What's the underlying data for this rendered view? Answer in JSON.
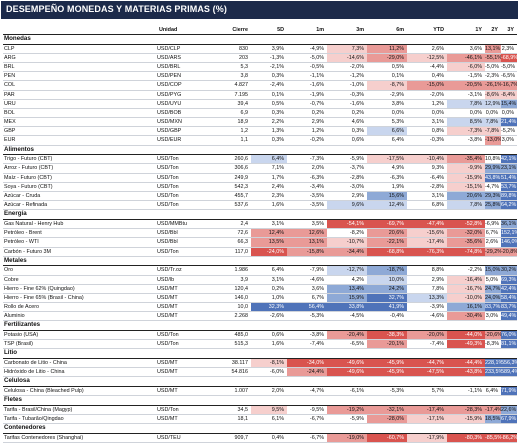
{
  "title": "DESEMPEÑO MONEDAS Y MATERIAS PRIMAS (%)",
  "headers": [
    "Unidad",
    "Cierre",
    "5D",
    "1m",
    "3m",
    "6m",
    "YTD",
    "1Y",
    "2Y",
    "3Y"
  ],
  "colors": {
    "banner": "#1c2a4a",
    "blue_strong": "#4f73b9",
    "blue_mid": "#8ea9d6",
    "blue_light": "#c9d6ee",
    "red_strong": "#d9544f",
    "red_mid": "#e99a97",
    "red_light": "#f6cfcd"
  },
  "sections": [
    {
      "name": "Monedas",
      "rows": [
        {
          "name": "CLP",
          "unit": "USD/CLP",
          "vals": [
            "830",
            "3,9%",
            "-4,9%",
            "7,3%",
            "11,2%",
            "2,6%",
            "3,6%",
            "13,1%",
            "2,3%"
          ],
          "tones": [
            null,
            null,
            null,
            "rl",
            "rm",
            null,
            null,
            "rm",
            null
          ]
        },
        {
          "name": "ARG",
          "unit": "USD/ARS",
          "vals": [
            "203",
            "-1,3%",
            "-5,0%",
            "-14,6%",
            "-29,0%",
            "-12,5%",
            "-46,1%",
            "-55,1%",
            "-68,9%"
          ],
          "tones": [
            null,
            null,
            null,
            "rl",
            "rm",
            "rl",
            "rm",
            "rm",
            "rs"
          ]
        },
        {
          "name": "BRL",
          "unit": "USD/BRL",
          "vals": [
            "5,3",
            "-2,1%",
            "-0,5%",
            "-2,0%",
            "0,5%",
            "-4,4%",
            "-6,0%",
            "-5,0%",
            "-5,0%"
          ],
          "tones": [
            null,
            null,
            null,
            null,
            null,
            null,
            "rl",
            null,
            null
          ]
        },
        {
          "name": "PEN",
          "unit": "USD/PEN",
          "vals": [
            "3,8",
            "0,3%",
            "-1,1%",
            "-1,2%",
            "0,1%",
            "0,4%",
            "-1,5%",
            "-2,3%",
            "-6,5%"
          ],
          "tones": [
            null,
            null,
            null,
            null,
            null,
            null,
            null,
            null,
            null
          ]
        },
        {
          "name": "COL",
          "unit": "USD/COP",
          "vals": [
            "4.827",
            "-2,4%",
            "-1,6%",
            "-1,0%",
            "-8,7%",
            "-15,0%",
            "-20,5%",
            "-26,1%",
            "-16,7%"
          ],
          "tones": [
            null,
            null,
            null,
            null,
            "rl",
            "rm",
            "rm",
            "rm",
            "rm"
          ]
        },
        {
          "name": "PAR",
          "unit": "USD/PYG",
          "vals": [
            "7.195",
            "0,1%",
            "-1,9%",
            "-0,3%",
            "-2,9%",
            "-2,0%",
            "-3,1%",
            "-8,6%",
            "-8,4%"
          ],
          "tones": [
            null,
            null,
            null,
            null,
            null,
            null,
            null,
            "rl",
            "rl"
          ]
        },
        {
          "name": "URU",
          "unit": "USD/UYU",
          "vals": [
            "39,4",
            "0,5%",
            "-0,7%",
            "-1,6%",
            "3,8%",
            "1,2%",
            "7,8%",
            "12,9%",
            "15,4%"
          ],
          "tones": [
            null,
            null,
            null,
            null,
            null,
            null,
            "bl",
            "bl",
            "bm"
          ]
        },
        {
          "name": "BOL",
          "unit": "USD/BOB",
          "vals": [
            "6,9",
            "0,3%",
            "0,2%",
            "0,2%",
            "0,0%",
            "0,0%",
            "0,0%",
            "0,0%",
            "0,0%"
          ],
          "tones": [
            null,
            null,
            null,
            null,
            null,
            null,
            null,
            null,
            null
          ]
        },
        {
          "name": "MEX",
          "unit": "USD/MXN",
          "vals": [
            "18,9",
            "2,2%",
            "2,9%",
            "4,6%",
            "5,3%",
            "3,1%",
            "8,5%",
            "7,8%",
            "21,4%"
          ],
          "tones": [
            null,
            null,
            null,
            null,
            null,
            null,
            "bl",
            "bl",
            "bs"
          ]
        },
        {
          "name": "GBP",
          "unit": "USD/GBP",
          "vals": [
            "1,2",
            "1,3%",
            "1,2%",
            "0,3%",
            "6,6%",
            "0,8%",
            "-7,3%",
            "-7,8%",
            "-5,2%"
          ],
          "tones": [
            null,
            null,
            null,
            null,
            "bl",
            null,
            "rl",
            "rl",
            null
          ]
        },
        {
          "name": "EUR",
          "unit": "USD/EUR",
          "vals": [
            "1,1",
            "0,3%",
            "-0,2%",
            "0,6%",
            "6,4%",
            "-0,3%",
            "-3,8%",
            "-13,0%",
            "3,0%"
          ],
          "tones": [
            null,
            null,
            null,
            null,
            null,
            null,
            null,
            "rm",
            null
          ]
        }
      ]
    },
    {
      "name": "Alimentos",
      "rows": [
        {
          "name": "Trigo - Futuro (CBT)",
          "unit": "USD/Ton",
          "vals": [
            "260,6",
            "6,4%",
            "-7,3%",
            "-5,9%",
            "-17,5%",
            "-10,4%",
            "-35,4%",
            "10,8%",
            "42,1%"
          ],
          "tones": [
            null,
            "bl",
            null,
            null,
            "rl",
            "rl",
            "rm",
            null,
            "bs"
          ]
        },
        {
          "name": "Arroz - Futuro (CBT)",
          "unit": "USD/Ton",
          "vals": [
            "306,6",
            "7,1%",
            "2,0%",
            "-3,7%",
            "4,9%",
            "9,3%",
            "-9,9%",
            "29,9%",
            "23,1%"
          ],
          "tones": [
            null,
            null,
            null,
            null,
            null,
            null,
            "rl",
            "bm",
            "bm"
          ]
        },
        {
          "name": "Maíz - Futuro (CBT)",
          "unit": "USD/Ton",
          "vals": [
            "249,9",
            "1,7%",
            "-6,3%",
            "-2,8%",
            "-6,3%",
            "-6,4%",
            "-15,9%",
            "43,8%",
            "51,4%"
          ],
          "tones": [
            null,
            null,
            null,
            null,
            null,
            null,
            "rl",
            "bs",
            "bs"
          ]
        },
        {
          "name": "Soya - Futuro (CBT)",
          "unit": "USD/Ton",
          "vals": [
            "542,3",
            "2,4%",
            "-3,4%",
            "-3,0%",
            "1,9%",
            "-2,8%",
            "-15,1%",
            "-4,7%",
            "53,7%"
          ],
          "tones": [
            null,
            null,
            null,
            null,
            null,
            null,
            "rl",
            null,
            "bs"
          ]
        },
        {
          "name": "Azúcar - Cruda",
          "unit": "USD/Ton",
          "vals": [
            "455,7",
            "2,3%",
            "-3,5%",
            "2,9%",
            "15,6%",
            "3,1%",
            "20,6%",
            "29,3%",
            "89,8%"
          ],
          "tones": [
            null,
            null,
            null,
            null,
            "bm",
            null,
            "bm",
            "bm",
            "bs"
          ]
        },
        {
          "name": "Azúcar - Refinada",
          "unit": "USD/Ton",
          "vals": [
            "537,6",
            "1,6%",
            "-3,5%",
            "9,6%",
            "12,4%",
            "6,8%",
            "7,8%",
            "25,8%",
            "64,2%"
          ],
          "tones": [
            null,
            null,
            null,
            "bl",
            "bl",
            null,
            "bl",
            "bm",
            "bs"
          ]
        }
      ]
    },
    {
      "name": "Energía",
      "rows": [
        {
          "name": "Gas Natural - Henry Hub",
          "unit": "USD/MMBtu",
          "vals": [
            "2,4",
            "3,1%",
            "3,5%",
            "-54,1%",
            "-69,7%",
            "-47,4%",
            "-52,8%",
            "-6,9%",
            "36,1%"
          ],
          "tones": [
            null,
            null,
            null,
            "rs",
            "rs",
            "rs",
            "rs",
            null,
            "bm"
          ]
        },
        {
          "name": "Petróleo - Brent",
          "unit": "USD/Bbl",
          "vals": [
            "72,6",
            "12,4%",
            "12,6%",
            "-8,2%",
            "20,6%",
            "-15,6%",
            "-32,0%",
            "6,7%",
            "152,1%"
          ],
          "tones": [
            null,
            "rm",
            "rm",
            null,
            "rm",
            "rl",
            "rm",
            null,
            "bs"
          ]
        },
        {
          "name": "Petróleo - WTI",
          "unit": "USD/Bbl",
          "vals": [
            "66,3",
            "13,5%",
            "13,1%",
            "-10,7%",
            "-22,1%",
            "-17,4%",
            "-35,6%",
            "2,6%",
            "146,0%"
          ],
          "tones": [
            null,
            "rm",
            "rm",
            "rl",
            "rm",
            "rl",
            "rm",
            null,
            "bs"
          ]
        },
        {
          "name": "Carbón - Futuro 3M",
          "unit": "USD/Ton",
          "vals": [
            "117,0",
            "-24,0%",
            "-15,8%",
            "-34,4%",
            "-68,8%",
            "-76,3%",
            "-74,8%",
            "-29,2%",
            "-20,8%"
          ],
          "tones": [
            null,
            "rs",
            "rm",
            "rm",
            "rs",
            "rs",
            "rs",
            "rm",
            "rm"
          ]
        }
      ]
    },
    {
      "name": "Metales",
      "rows": [
        {
          "name": "Oro",
          "unit": "USD/Tr.oz",
          "vals": [
            "1.986",
            "6,4%",
            "-7,9%",
            "-12,7%",
            "-18,7%",
            "8,8%",
            "-2,2%",
            "15,0%",
            "30,2%"
          ],
          "tones": [
            null,
            null,
            null,
            "bl",
            "bm",
            null,
            null,
            "bm",
            "bm"
          ]
        },
        {
          "name": "Cobre",
          "unit": "USD/lb",
          "vals": [
            "3,9",
            "3,1%",
            "-4,6%",
            "4,2%",
            "10,0%",
            "2,9%",
            "-16,4%",
            "5,0%",
            "69,3%"
          ],
          "tones": [
            null,
            null,
            null,
            null,
            "bl",
            null,
            "rl",
            null,
            "bs"
          ]
        },
        {
          "name": "Hierro - Fine 62% (Quingdao)",
          "unit": "USD/MT",
          "vals": [
            "120,4",
            "0,2%",
            "3,6%",
            "13,4%",
            "24,2%",
            "7,8%",
            "-16,7%",
            "24,7%",
            "42,4%"
          ],
          "tones": [
            null,
            null,
            null,
            "bm",
            "bm",
            null,
            "rl",
            "bm",
            "bs"
          ]
        },
        {
          "name": "Hierro - Fine 65% (Brasil - China)",
          "unit": "USD/MT",
          "vals": [
            "146,0",
            "1,0%",
            "6,7%",
            "15,9%",
            "32,7%",
            "13,3%",
            "-10,0%",
            "24,0%",
            "58,4%"
          ],
          "tones": [
            null,
            null,
            null,
            "bm",
            "bs",
            "bl",
            "rl",
            "bm",
            "bs"
          ]
        },
        {
          "name": "Rollo de Acero",
          "unit": "USD/MT",
          "vals": [
            "10,0",
            "32,3%",
            "56,4%",
            "33,8%",
            "41,9%",
            "-3,9%",
            "16,1%",
            "83,7%",
            "83,7%"
          ],
          "tones": [
            null,
            "bs",
            "bs",
            "bs",
            "bs",
            null,
            "bm",
            "bs",
            "bs"
          ]
        },
        {
          "name": "Aluminio",
          "unit": "USD/MT",
          "vals": [
            "2.268",
            "-2,6%",
            "-5,3%",
            "-4,5%",
            "-0,4%",
            "-4,6%",
            "-30,4%",
            "3,0%",
            "49,4%"
          ],
          "tones": [
            null,
            null,
            null,
            null,
            null,
            null,
            "rm",
            null,
            "bs"
          ]
        }
      ]
    },
    {
      "name": "Fertilizantes",
      "rows": [
        {
          "name": "Potasio (USA)",
          "unit": "USD/Ton",
          "vals": [
            "485,0",
            "0,6%",
            "-3,8%",
            "-20,4%",
            "-38,3%",
            "-20,0%",
            "-44,0%",
            "-20,6%",
            "76,0%"
          ],
          "tones": [
            null,
            null,
            null,
            "rm",
            "rs",
            "rm",
            "rs",
            "rm",
            "bs"
          ]
        },
        {
          "name": "TSP (Brasil)",
          "unit": "USD/Ton",
          "vals": [
            "515,3",
            "1,6%",
            "-7,4%",
            "-6,5%",
            "-20,1%",
            "-7,4%",
            "-49,3%",
            "-8,3%",
            "81,1%"
          ],
          "tones": [
            null,
            null,
            null,
            null,
            "rm",
            null,
            "rs",
            null,
            "bs"
          ]
        }
      ]
    },
    {
      "name": "Litio",
      "rows": [
        {
          "name": "Carbonato de Litio - China",
          "unit": "USD/MT",
          "vals": [
            "38.117",
            "-8,1%",
            "-34,0%",
            "-49,6%",
            "-45,9%",
            "-44,7%",
            "-44,4%",
            "228,1%",
            "556,3%"
          ],
          "tones": [
            null,
            "rl",
            "rs",
            "rs",
            "rs",
            "rs",
            "rs",
            "bs",
            "bs"
          ]
        },
        {
          "name": "Hidróxido de Litio - China",
          "unit": "USD/MT",
          "vals": [
            "54.816",
            "-6,0%",
            "-24,4%",
            "-49,6%",
            "-45,9%",
            "-47,5%",
            "-43,8%",
            "233,5%",
            "589,4%"
          ],
          "tones": [
            null,
            null,
            "rm",
            "rs",
            "rs",
            "rs",
            "rs",
            "bs",
            "bs"
          ]
        }
      ]
    },
    {
      "name": "Celulosa",
      "rows": [
        {
          "name": "Celulosa - China (Bleached Pulp)",
          "unit": "USD/MT",
          "vals": [
            "1.007",
            "2,0%",
            "-4,7%",
            "-6,1%",
            "-5,3%",
            "5,7%",
            "-1,1%",
            "6,4%",
            "71,9%"
          ],
          "tones": [
            null,
            null,
            null,
            null,
            null,
            null,
            null,
            null,
            "bs"
          ]
        }
      ]
    },
    {
      "name": "Fletes",
      "rows": [
        {
          "name": "Tarifa - Brasil/China (Magyp)",
          "unit": "USD/Ton",
          "vals": [
            "34,5",
            "9,5%",
            "-9,5%",
            "-19,2%",
            "-32,1%",
            "-17,4%",
            "-28,3%",
            "-17,4%",
            "22,6%"
          ],
          "tones": [
            null,
            "rl",
            null,
            "rm",
            "rm",
            "rm",
            "rm",
            "rm",
            "bm"
          ]
        },
        {
          "name": "Tarifa - Tubarão/Qingdao",
          "unit": "USD/MT",
          "vals": [
            "18,1",
            "6,1%",
            "-6,7%",
            "-5,9%",
            "-28,0%",
            "-17,1%",
            "-15,9%",
            "18,5%",
            "67,9%"
          ],
          "tones": [
            null,
            null,
            null,
            null,
            "rm",
            "rl",
            "rl",
            "bm",
            "bs"
          ]
        }
      ]
    },
    {
      "name": "Contenedores",
      "rows": [
        {
          "name": "Tarifas Contenedores (Shanghai)",
          "unit": "USD/TEU",
          "vals": [
            "909,7",
            "0,4%",
            "-6,7%",
            "-19,0%",
            "-60,7%",
            "-17,9%",
            "-80,3%",
            "-85,5%",
            "-86,2%"
          ],
          "tones": [
            null,
            null,
            null,
            "rm",
            "rs",
            "rl",
            "rs",
            "rs",
            "rs"
          ]
        }
      ]
    }
  ]
}
